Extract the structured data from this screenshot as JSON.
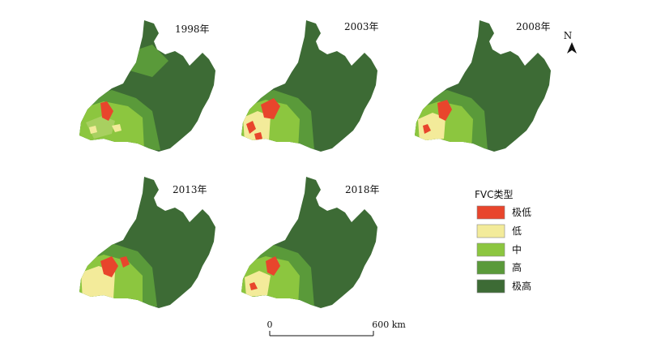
{
  "maps": [
    {
      "year_label": "1998年"
    },
    {
      "year_label": "2003年"
    },
    {
      "year_label": "2008年"
    },
    {
      "year_label": "2013年"
    },
    {
      "year_label": "2018年"
    }
  ],
  "north_label": "N",
  "legend": {
    "title": "FVC类型",
    "items": [
      {
        "label": "极低",
        "color": "#e8452c"
      },
      {
        "label": "低",
        "color": "#f3eb9a"
      },
      {
        "label": "中",
        "color": "#8cc63f"
      },
      {
        "label": "高",
        "color": "#5a9a3a"
      },
      {
        "label": "极高",
        "color": "#3d6b35"
      }
    ]
  },
  "scale_bar": {
    "start_label": "0",
    "end_label": "600 km"
  }
}
